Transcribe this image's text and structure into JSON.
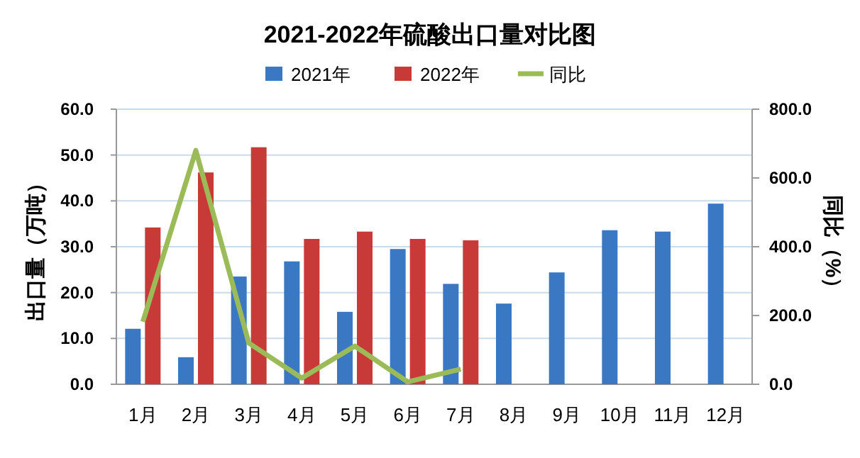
{
  "chart_data": {
    "type": "bar",
    "title": "2021-2022年硫酸出口量对比图",
    "categories": [
      "1月",
      "2月",
      "3月",
      "4月",
      "5月",
      "6月",
      "7月",
      "8月",
      "9月",
      "10月",
      "11月",
      "12月"
    ],
    "series": [
      {
        "name": "2021年",
        "color": "#3a78c4",
        "values": [
          12.1,
          5.9,
          23.5,
          26.8,
          15.8,
          29.5,
          21.9,
          17.6,
          24.4,
          33.6,
          33.3,
          39.4
        ]
      },
      {
        "name": "2022年",
        "color": "#c83a38",
        "values": [
          34.2,
          46.2,
          51.7,
          31.7,
          33.3,
          31.7,
          31.4,
          null,
          null,
          null,
          null,
          null
        ]
      },
      {
        "name": "同比",
        "color": "#9bbb59",
        "type": "line",
        "axis": "y2",
        "values": [
          182,
          680,
          120,
          18,
          111,
          7,
          44,
          null,
          null,
          null,
          null,
          null
        ]
      }
    ],
    "ylabel": "出口量（万吨）",
    "y2label": "同比（%）",
    "ylim": [
      0,
      60
    ],
    "yticks": [
      {
        "value": 0,
        "label": "0.0"
      },
      {
        "value": 10,
        "label": "10.0"
      },
      {
        "value": 20,
        "label": "20.0"
      },
      {
        "value": 30,
        "label": "30.0"
      },
      {
        "value": 40,
        "label": "40.0"
      },
      {
        "value": 50,
        "label": "50.0"
      },
      {
        "value": 60,
        "label": "60.0"
      }
    ],
    "y2lim": [
      0,
      800
    ],
    "y2ticks": [
      {
        "value": 0,
        "label": "0.0"
      },
      {
        "value": 200,
        "label": "200.0"
      },
      {
        "value": 400,
        "label": "400.0"
      },
      {
        "value": 600,
        "label": "600.0"
      },
      {
        "value": 800,
        "label": "800.0"
      }
    ],
    "grid": "y",
    "legend": "top"
  }
}
